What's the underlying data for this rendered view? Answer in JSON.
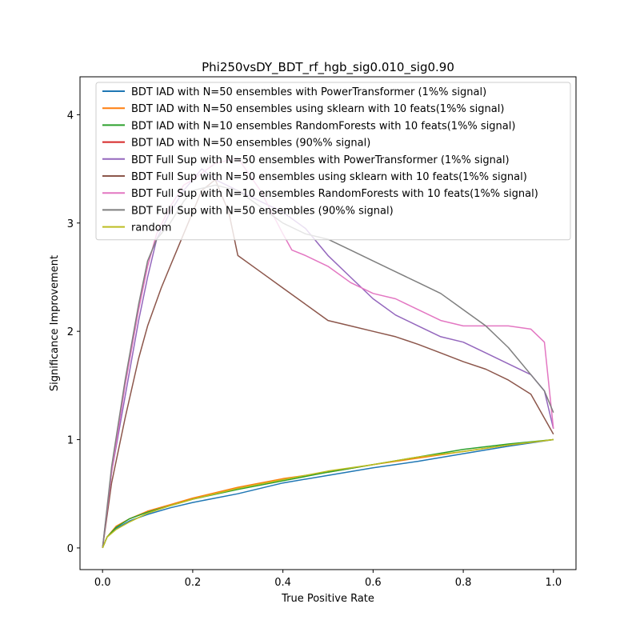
{
  "chart_data": {
    "type": "line",
    "title": "Phi250vsDY_BDT_rf_hgb_sig0.010_sig0.90",
    "xlabel": "True Positive Rate",
    "ylabel": "Significance Improvement",
    "xlim": [
      -0.05,
      1.05
    ],
    "ylim": [
      -0.2,
      4.35
    ],
    "xticks": [
      "0.0",
      "0.2",
      "0.4",
      "0.6",
      "0.8",
      "1.0"
    ],
    "yticks": [
      "0",
      "1",
      "2",
      "3",
      "4"
    ],
    "grid": false,
    "legend_position": "top-center",
    "series": [
      {
        "name": "BDT IAD with N=50 ensembles with PowerTransformer (1%% signal)",
        "color": "#1f77b4",
        "points": [
          [
            0,
            0
          ],
          [
            0.01,
            0.1
          ],
          [
            0.03,
            0.18
          ],
          [
            0.06,
            0.25
          ],
          [
            0.1,
            0.31
          ],
          [
            0.15,
            0.37
          ],
          [
            0.2,
            0.42
          ],
          [
            0.3,
            0.5
          ],
          [
            0.4,
            0.6
          ],
          [
            0.5,
            0.67
          ],
          [
            0.6,
            0.74
          ],
          [
            0.7,
            0.8
          ],
          [
            0.8,
            0.87
          ],
          [
            0.9,
            0.94
          ],
          [
            1.0,
            1.0
          ]
        ]
      },
      {
        "name": "BDT IAD with N=50 ensembles using sklearn with 10 feats(1%% signal)",
        "color": "#ff7f0e",
        "points": [
          [
            0,
            0
          ],
          [
            0.01,
            0.1
          ],
          [
            0.03,
            0.2
          ],
          [
            0.06,
            0.27
          ],
          [
            0.1,
            0.34
          ],
          [
            0.15,
            0.4
          ],
          [
            0.2,
            0.46
          ],
          [
            0.3,
            0.56
          ],
          [
            0.4,
            0.64
          ],
          [
            0.5,
            0.7
          ],
          [
            0.6,
            0.77
          ],
          [
            0.7,
            0.83
          ],
          [
            0.8,
            0.89
          ],
          [
            0.9,
            0.95
          ],
          [
            1.0,
            1.0
          ]
        ]
      },
      {
        "name": "BDT IAD with N=10 ensembles RandomForests with 10 feats(1%% signal)",
        "color": "#2ca02c",
        "points": [
          [
            0,
            0
          ],
          [
            0.01,
            0.1
          ],
          [
            0.03,
            0.19
          ],
          [
            0.06,
            0.27
          ],
          [
            0.1,
            0.33
          ],
          [
            0.15,
            0.39
          ],
          [
            0.2,
            0.45
          ],
          [
            0.3,
            0.54
          ],
          [
            0.4,
            0.62
          ],
          [
            0.5,
            0.7
          ],
          [
            0.6,
            0.77
          ],
          [
            0.7,
            0.84
          ],
          [
            0.8,
            0.91
          ],
          [
            0.9,
            0.96
          ],
          [
            1.0,
            1.0
          ]
        ]
      },
      {
        "name": "BDT IAD with N=50 ensembles (90%% signal)",
        "color": "#d62728",
        "points": []
      },
      {
        "name": "BDT Full Sup with N=50 ensembles with PowerTransformer (1%% signal)",
        "color": "#9467bd",
        "points": [
          [
            0,
            0
          ],
          [
            0.02,
            0.7
          ],
          [
            0.05,
            1.4
          ],
          [
            0.08,
            2.1
          ],
          [
            0.1,
            2.5
          ],
          [
            0.12,
            2.85
          ],
          [
            0.15,
            3.1
          ],
          [
            0.18,
            3.3
          ],
          [
            0.2,
            3.4
          ],
          [
            0.22,
            3.5
          ],
          [
            0.25,
            3.4
          ],
          [
            0.3,
            3.3
          ],
          [
            0.35,
            3.2
          ],
          [
            0.4,
            3.1
          ],
          [
            0.45,
            2.95
          ],
          [
            0.5,
            2.7
          ],
          [
            0.55,
            2.5
          ],
          [
            0.6,
            2.3
          ],
          [
            0.65,
            2.15
          ],
          [
            0.7,
            2.05
          ],
          [
            0.75,
            1.95
          ],
          [
            0.8,
            1.9
          ],
          [
            0.85,
            1.8
          ],
          [
            0.9,
            1.7
          ],
          [
            0.95,
            1.6
          ],
          [
            0.98,
            1.45
          ],
          [
            1.0,
            1.1
          ]
        ]
      },
      {
        "name": "BDT Full Sup with N=50 ensembles using sklearn with 10 feats(1%% signal)",
        "color": "#8c564b",
        "points": [
          [
            0,
            0
          ],
          [
            0.02,
            0.6
          ],
          [
            0.05,
            1.2
          ],
          [
            0.08,
            1.75
          ],
          [
            0.1,
            2.05
          ],
          [
            0.13,
            2.4
          ],
          [
            0.15,
            2.6
          ],
          [
            0.18,
            2.9
          ],
          [
            0.2,
            3.1
          ],
          [
            0.22,
            3.3
          ],
          [
            0.25,
            3.4
          ],
          [
            0.28,
            3.1
          ],
          [
            0.3,
            2.7
          ],
          [
            0.35,
            2.55
          ],
          [
            0.4,
            2.4
          ],
          [
            0.45,
            2.25
          ],
          [
            0.5,
            2.1
          ],
          [
            0.55,
            2.05
          ],
          [
            0.6,
            2.0
          ],
          [
            0.65,
            1.95
          ],
          [
            0.7,
            1.88
          ],
          [
            0.75,
            1.8
          ],
          [
            0.8,
            1.72
          ],
          [
            0.85,
            1.65
          ],
          [
            0.9,
            1.55
          ],
          [
            0.95,
            1.42
          ],
          [
            1.0,
            1.05
          ]
        ]
      },
      {
        "name": "BDT Full Sup with N=10 ensembles RandomForests with 10 feats(1%% signal)",
        "color": "#e377c2",
        "points": [
          [
            0,
            0
          ],
          [
            0.02,
            0.7
          ],
          [
            0.05,
            1.5
          ],
          [
            0.08,
            2.2
          ],
          [
            0.1,
            2.6
          ],
          [
            0.12,
            2.9
          ],
          [
            0.15,
            3.15
          ],
          [
            0.18,
            3.35
          ],
          [
            0.2,
            3.4
          ],
          [
            0.25,
            3.55
          ],
          [
            0.3,
            3.6
          ],
          [
            0.35,
            3.3
          ],
          [
            0.4,
            2.9
          ],
          [
            0.42,
            2.75
          ],
          [
            0.45,
            2.7
          ],
          [
            0.5,
            2.6
          ],
          [
            0.55,
            2.45
          ],
          [
            0.6,
            2.35
          ],
          [
            0.65,
            2.3
          ],
          [
            0.7,
            2.2
          ],
          [
            0.75,
            2.1
          ],
          [
            0.8,
            2.05
          ],
          [
            0.85,
            2.05
          ],
          [
            0.9,
            2.05
          ],
          [
            0.95,
            2.02
          ],
          [
            0.98,
            1.9
          ],
          [
            1.0,
            1.1
          ]
        ]
      },
      {
        "name": "BDT Full Sup with N=50 ensembles (90%% signal)",
        "color": "#7f7f7f",
        "points": [
          [
            0,
            0
          ],
          [
            0.02,
            0.75
          ],
          [
            0.05,
            1.55
          ],
          [
            0.08,
            2.25
          ],
          [
            0.1,
            2.65
          ],
          [
            0.12,
            2.85
          ],
          [
            0.15,
            3.0
          ],
          [
            0.18,
            3.2
          ],
          [
            0.2,
            3.3
          ],
          [
            0.25,
            3.35
          ],
          [
            0.3,
            3.3
          ],
          [
            0.35,
            3.15
          ],
          [
            0.4,
            3.0
          ],
          [
            0.45,
            2.9
          ],
          [
            0.5,
            2.85
          ],
          [
            0.55,
            2.75
          ],
          [
            0.6,
            2.65
          ],
          [
            0.65,
            2.55
          ],
          [
            0.7,
            2.45
          ],
          [
            0.75,
            2.35
          ],
          [
            0.8,
            2.2
          ],
          [
            0.85,
            2.05
          ],
          [
            0.9,
            1.85
          ],
          [
            0.95,
            1.6
          ],
          [
            0.98,
            1.45
          ],
          [
            1.0,
            1.25
          ]
        ]
      },
      {
        "name": "random",
        "color": "#bcbd22",
        "points": [
          [
            0,
            0
          ],
          [
            0.01,
            0.1
          ],
          [
            0.03,
            0.17
          ],
          [
            0.06,
            0.24
          ],
          [
            0.1,
            0.32
          ],
          [
            0.15,
            0.39
          ],
          [
            0.2,
            0.45
          ],
          [
            0.3,
            0.55
          ],
          [
            0.4,
            0.63
          ],
          [
            0.5,
            0.71
          ],
          [
            0.6,
            0.77
          ],
          [
            0.7,
            0.84
          ],
          [
            0.8,
            0.89
          ],
          [
            0.9,
            0.95
          ],
          [
            1.0,
            1.0
          ]
        ]
      }
    ]
  }
}
